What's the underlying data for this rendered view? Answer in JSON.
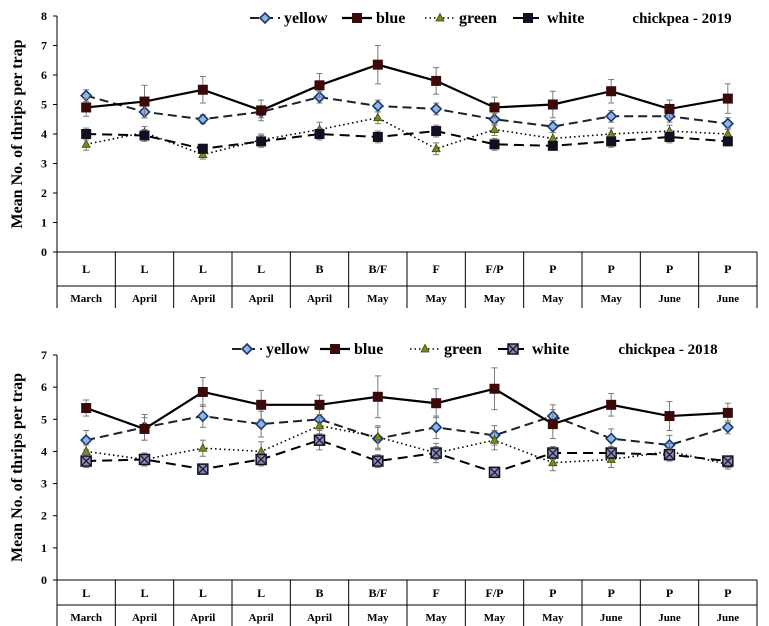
{
  "chart_data": [
    {
      "type": "line",
      "title": "chickpea - 2019",
      "xlabel": "",
      "ylabel": "Mean No. of thrips per trap",
      "ylim": [
        0,
        8
      ],
      "yticks": [
        0,
        1,
        2,
        3,
        4,
        5,
        6,
        7,
        8
      ],
      "grid": false,
      "legend_position": "top",
      "categories": [
        {
          "stage": "L",
          "month": "March"
        },
        {
          "stage": "L",
          "month": "April"
        },
        {
          "stage": "L",
          "month": "April"
        },
        {
          "stage": "L",
          "month": "April"
        },
        {
          "stage": "B",
          "month": "April"
        },
        {
          "stage": "B/F",
          "month": "May"
        },
        {
          "stage": "F",
          "month": "May"
        },
        {
          "stage": "F/P",
          "month": "May"
        },
        {
          "stage": "P",
          "month": "May"
        },
        {
          "stage": "P",
          "month": "May"
        },
        {
          "stage": "P",
          "month": "June"
        },
        {
          "stage": "P",
          "month": "June"
        }
      ],
      "series": [
        {
          "name": "yellow",
          "dash": "dashed",
          "marker": "diamond",
          "values": [
            5.3,
            4.75,
            4.5,
            4.75,
            5.25,
            4.95,
            4.85,
            4.5,
            4.25,
            4.6,
            4.6,
            4.35
          ],
          "errors": [
            0.2,
            0.2,
            0.15,
            0.2,
            0.2,
            0.2,
            0.2,
            0.2,
            0.2,
            0.2,
            0.2,
            0.2
          ]
        },
        {
          "name": "blue",
          "dash": "solid",
          "marker": "square",
          "values": [
            4.9,
            5.1,
            5.5,
            4.8,
            5.65,
            6.35,
            5.8,
            4.9,
            5.0,
            5.45,
            4.85,
            5.2
          ],
          "errors": [
            0.3,
            0.55,
            0.45,
            0.35,
            0.4,
            0.65,
            0.45,
            0.35,
            0.45,
            0.4,
            0.3,
            0.5
          ]
        },
        {
          "name": "green",
          "dash": "dotted",
          "marker": "triangle",
          "values": [
            3.65,
            4.05,
            3.3,
            3.8,
            4.15,
            4.55,
            3.5,
            4.15,
            3.85,
            4.0,
            4.1,
            4.0
          ],
          "errors": [
            0.2,
            0.2,
            0.15,
            0.2,
            0.25,
            0.2,
            0.2,
            0.2,
            0.2,
            0.2,
            0.2,
            0.2
          ]
        },
        {
          "name": "white",
          "dash": "long-dashed",
          "marker": "square",
          "values": [
            4.0,
            3.95,
            3.5,
            3.75,
            4.0,
            3.9,
            4.1,
            3.65,
            3.6,
            3.75,
            3.9,
            3.75
          ],
          "errors": [
            0.2,
            0.2,
            0.15,
            0.2,
            0.2,
            0.2,
            0.2,
            0.2,
            0.15,
            0.2,
            0.2,
            0.15
          ]
        }
      ]
    },
    {
      "type": "line",
      "title": "chickpea - 2018",
      "xlabel": "",
      "ylabel": "Mean No. of thrips per trap",
      "ylim": [
        0,
        7
      ],
      "yticks": [
        0,
        1,
        2,
        3,
        4,
        5,
        6,
        7
      ],
      "grid": false,
      "legend_position": "top",
      "categories": [
        {
          "stage": "L",
          "month": "March"
        },
        {
          "stage": "L",
          "month": "April"
        },
        {
          "stage": "L",
          "month": "April"
        },
        {
          "stage": "L",
          "month": "April"
        },
        {
          "stage": "B",
          "month": "April"
        },
        {
          "stage": "B/F",
          "month": "May"
        },
        {
          "stage": "F",
          "month": "May"
        },
        {
          "stage": "F/P",
          "month": "May"
        },
        {
          "stage": "P",
          "month": "May"
        },
        {
          "stage": "P",
          "month": "June"
        },
        {
          "stage": "P",
          "month": "June"
        },
        {
          "stage": "P",
          "month": "June"
        }
      ],
      "series": [
        {
          "name": "yellow",
          "dash": "dashed",
          "marker": "diamond",
          "values": [
            4.35,
            4.75,
            5.1,
            4.85,
            5.0,
            4.4,
            4.75,
            4.5,
            5.1,
            4.4,
            4.2,
            4.75
          ],
          "errors": [
            0.3,
            0.4,
            0.35,
            0.4,
            0.3,
            0.35,
            0.35,
            0.3,
            0.35,
            0.3,
            0.3,
            0.2
          ]
        },
        {
          "name": "blue",
          "dash": "solid",
          "marker": "square",
          "values": [
            5.35,
            4.7,
            5.85,
            5.45,
            5.45,
            5.7,
            5.5,
            5.95,
            4.85,
            5.45,
            5.1,
            5.2
          ],
          "errors": [
            0.25,
            0.35,
            0.45,
            0.45,
            0.3,
            0.65,
            0.45,
            0.65,
            0.45,
            0.35,
            0.45,
            0.3
          ]
        },
        {
          "name": "green",
          "dash": "dotted",
          "marker": "triangle",
          "values": [
            4.0,
            3.75,
            4.1,
            4.0,
            4.8,
            4.45,
            3.95,
            4.35,
            3.65,
            3.75,
            4.0,
            3.6
          ],
          "errors": [
            0.2,
            0.2,
            0.25,
            0.3,
            0.25,
            0.35,
            0.3,
            0.3,
            0.25,
            0.25,
            0.25,
            0.15
          ]
        },
        {
          "name": "white",
          "dash": "long-dashed",
          "marker": "square-x",
          "values": [
            3.7,
            3.75,
            3.45,
            3.75,
            4.35,
            3.7,
            3.95,
            3.35,
            3.95,
            3.95,
            3.9,
            3.7
          ],
          "errors": [
            0.2,
            0.2,
            0.1,
            0.2,
            0.3,
            0.2,
            0.2,
            0.1,
            0.2,
            0.2,
            0.2,
            0.15
          ]
        }
      ]
    }
  ],
  "colors": {
    "yellow_line": "#1f1f2e",
    "yellow_marker": "#1c3a6e",
    "yellow_marker_fill": "#8fb4e6",
    "blue_line": "#000000",
    "blue_marker": "#3a0a0a",
    "green_line": "#000000",
    "green_marker": "#7a8a1a",
    "white_line": "#000000",
    "white_marker": "#101020",
    "axis": "#000000",
    "errorbar": "#7a7a7a"
  }
}
